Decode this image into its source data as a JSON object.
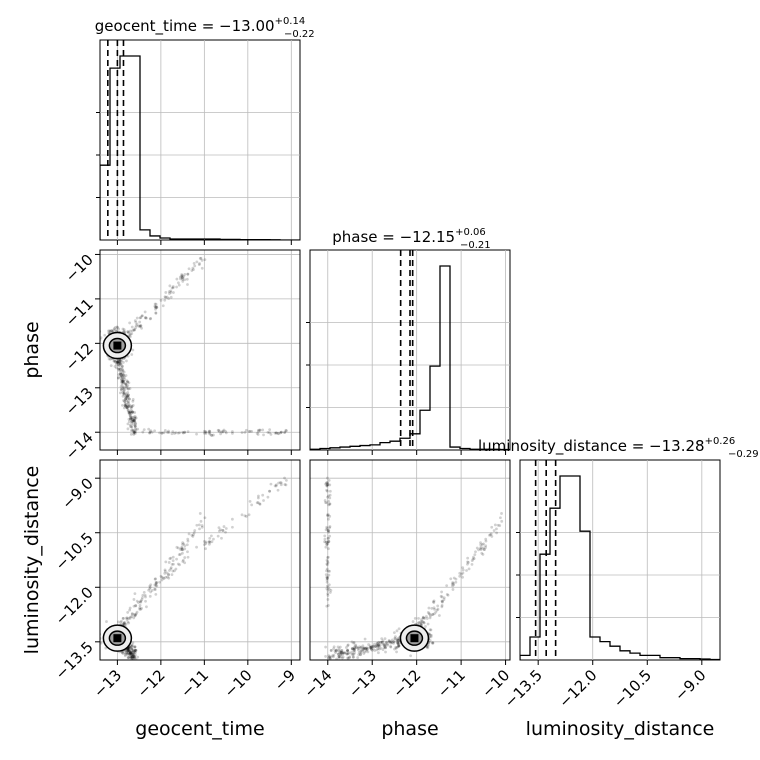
{
  "chart_data": {
    "type": "corner",
    "parameters": [
      "geocent_time",
      "phase",
      "luminosity_distance"
    ],
    "axis_labels": {
      "geocent_time": "geocent_time",
      "phase": "phase",
      "luminosity_distance": "luminosity_distance"
    },
    "ranges": {
      "geocent_time": [
        -13.4,
        -8.8
      ],
      "phase": [
        -14.4,
        -9.9
      ],
      "luminosity_distance": [
        -14.0,
        -8.5
      ]
    },
    "ticks": {
      "geocent_time": {
        "values": [
          -13,
          -12,
          -11,
          -10,
          -9
        ],
        "labels": [
          "−13",
          "−12",
          "−11",
          "−10",
          "−9"
        ]
      },
      "phase": {
        "values": [
          -14,
          -13,
          -12,
          -11,
          -10
        ],
        "labels": [
          "−14",
          "−13",
          "−12",
          "−11",
          "−10"
        ]
      },
      "luminosity_distance": {
        "values": [
          -13.5,
          -12.0,
          -10.5,
          -9.0
        ],
        "labels": [
          "−13.5",
          "−12.0",
          "−10.5",
          "−9.0"
        ]
      }
    },
    "titles": {
      "geocent_time": {
        "text": "geocent_time = −13.00",
        "upper": "+0.14",
        "lower": "−0.22"
      },
      "phase": {
        "text": "phase = −12.15",
        "upper": "+0.06",
        "lower": "−0.21"
      },
      "luminosity_distance": {
        "text": "luminosity_distance = −13.28",
        "upper": "+0.26",
        "lower": "−0.29"
      }
    },
    "quantiles": {
      "geocent_time": [
        -13.22,
        -13.0,
        -12.86
      ],
      "phase": [
        -12.36,
        -12.15,
        -12.09
      ],
      "luminosity_distance": [
        -13.57,
        -13.28,
        -13.02
      ]
    },
    "histograms": {
      "geocent_time": {
        "edges_start": -13.4,
        "bin_width": 0.23,
        "counts": [
          37,
          85,
          91,
          91,
          5,
          2,
          1,
          0.5,
          0.5,
          0.5,
          0.5,
          0.5,
          0.3,
          0.3,
          0.2,
          0.2,
          0.2,
          0.1,
          0,
          0
        ]
      },
      "phase": {
        "edges_start": -14.4,
        "bin_width": 0.225,
        "counts": [
          0.5,
          1,
          1.5,
          2,
          2.5,
          3,
          3.5,
          5,
          6,
          8,
          11,
          27,
          57,
          125,
          2,
          1,
          0.5,
          0.5,
          0.5,
          0.3
        ]
      },
      "luminosity_distance": {
        "edges_start": -14.0,
        "bin_width": 0.275,
        "counts": [
          1,
          5,
          23,
          33,
          40,
          40,
          28,
          5,
          4,
          3,
          2,
          1.5,
          1,
          1,
          0.5,
          0.5,
          0.3,
          0.3,
          0.2,
          0.1
        ]
      }
    },
    "posterior_peak": {
      "geocent_time": -13.0,
      "phase": -12.05,
      "luminosity_distance": -13.4
    },
    "grid": true,
    "scatter_color": "#000000",
    "contour_fill": "#a0a0a0"
  }
}
